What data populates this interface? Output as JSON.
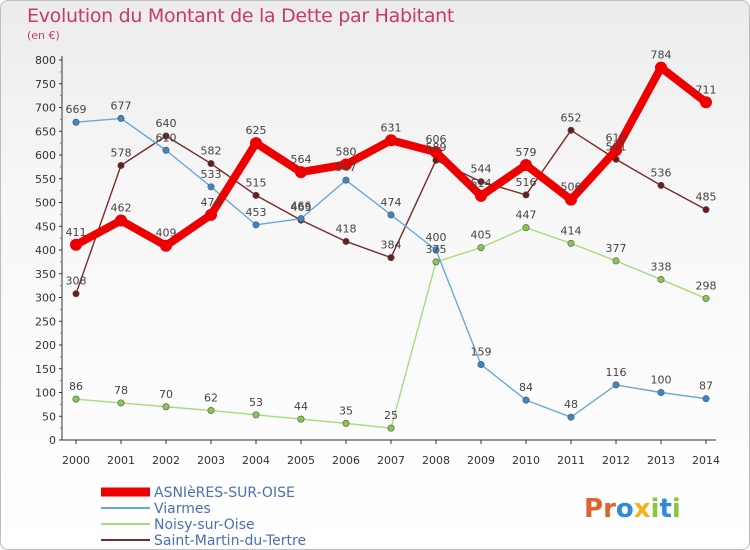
{
  "header": {
    "title": "Evolution du Montant de la Dette par Habitant",
    "unit": "(en €)"
  },
  "logo": {
    "text": "Proxiti",
    "letters": [
      {
        "ch": "P",
        "color": "#e2622b"
      },
      {
        "ch": "r",
        "color": "#e2622b"
      },
      {
        "ch": "o",
        "color": "#2f8bd6"
      },
      {
        "ch": "x",
        "color": "#f2b21b"
      },
      {
        "ch": "i",
        "color": "#8cc63f"
      },
      {
        "ch": "t",
        "color": "#2f8bd6"
      },
      {
        "ch": "i",
        "color": "#8cc63f"
      }
    ]
  },
  "chart_data": {
    "type": "line",
    "title": "Evolution du Montant de la Dette par Habitant",
    "subtitle": "(en €)",
    "xlabel": "",
    "ylabel": "",
    "ylim": [
      0,
      800
    ],
    "yticks": [
      0,
      50,
      100,
      150,
      200,
      250,
      300,
      350,
      400,
      450,
      500,
      550,
      600,
      650,
      700,
      750,
      800
    ],
    "grid": false,
    "legend": "bottom-left",
    "x": [
      "2000",
      "2001",
      "2002",
      "2003",
      "2004",
      "2005",
      "2006",
      "2007",
      "2008",
      "2009",
      "2010",
      "2011",
      "2012",
      "2013",
      "2014"
    ],
    "series": [
      {
        "name": "Saint-Martin-du-Tertre",
        "color": "#7a2a2a",
        "marker": "#6b1c1c",
        "values": [
          308,
          578,
          640,
          582,
          515,
          463,
          418,
          384,
          589,
          544,
          516,
          652,
          591,
          536,
          485
        ]
      },
      {
        "name": "Noisy-sur-Oise",
        "color": "#a6dc7b",
        "marker": "#86c84e",
        "values": [
          86,
          78,
          70,
          62,
          53,
          44,
          35,
          25,
          375,
          405,
          447,
          414,
          377,
          338,
          298
        ]
      },
      {
        "name": "Viarmes",
        "color": "#6aa9d6",
        "marker": "#3a86c6",
        "values": [
          669,
          677,
          610,
          533,
          453,
          466,
          547,
          474,
          400,
          159,
          84,
          48,
          116,
          100,
          87
        ]
      },
      {
        "name": "ASNIèRES-SUR-OISE",
        "color": "#ee0000",
        "marker": "#ee0000",
        "values": [
          411,
          462,
          409,
          474,
          625,
          564,
          580,
          631,
          606,
          514,
          579,
          506,
          610,
          784,
          711
        ]
      }
    ]
  }
}
